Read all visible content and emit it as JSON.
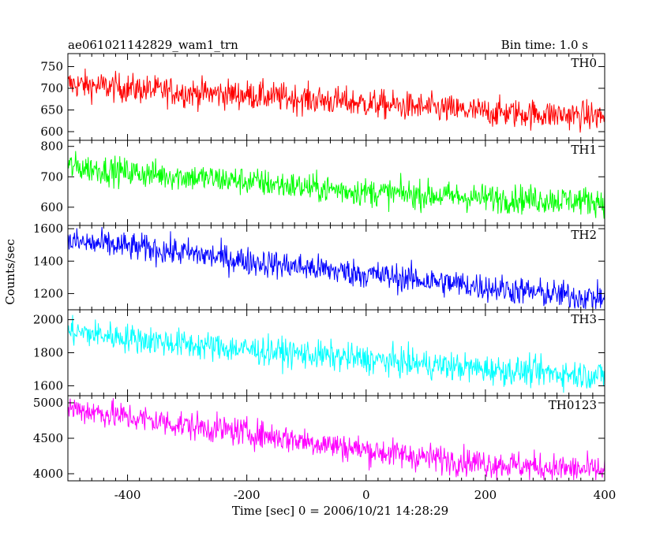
{
  "header": {
    "title": "ae061021142829_wam1_trn",
    "bin_time": "Bin time: 1.0 s"
  },
  "chart_data": {
    "type": "line",
    "title": "ae061021142829_wam1_trn",
    "subtitle": "Bin time: 1.0 s",
    "xlabel": "Time [sec] 0 = 2006/10/21 14:28:29",
    "ylabel": "Counts/sec",
    "xlim": [
      -500,
      400
    ],
    "x_ticks": [
      -400,
      -200,
      0,
      200,
      400
    ],
    "panels": [
      {
        "name": "TH0",
        "color": "#ff0000",
        "ylim": [
          580,
          780
        ],
        "y_ticks": [
          600,
          650,
          700,
          750
        ],
        "x": [
          -500,
          -400,
          -300,
          -200,
          -100,
          0,
          100,
          200,
          300,
          400
        ],
        "values": [
          710,
          700,
          690,
          685,
          675,
          665,
          655,
          645,
          640,
          635
        ]
      },
      {
        "name": "TH1",
        "color": "#00ff00",
        "ylim": [
          540,
          820
        ],
        "y_ticks": [
          600,
          700,
          800
        ],
        "x": [
          -500,
          -400,
          -300,
          -200,
          -100,
          0,
          100,
          200,
          300,
          400
        ],
        "values": [
          735,
          715,
          700,
          685,
          665,
          650,
          640,
          630,
          625,
          620
        ]
      },
      {
        "name": "TH2",
        "color": "#0000ff",
        "ylim": [
          1100,
          1620
        ],
        "y_ticks": [
          1200,
          1400,
          1600
        ],
        "x": [
          -500,
          -400,
          -300,
          -200,
          -100,
          0,
          100,
          200,
          300,
          400
        ],
        "values": [
          1520,
          1490,
          1450,
          1400,
          1360,
          1320,
          1280,
          1240,
          1200,
          1170
        ]
      },
      {
        "name": "TH3",
        "color": "#00ffff",
        "ylim": [
          1540,
          2060
        ],
        "y_ticks": [
          1600,
          1800,
          2000
        ],
        "x": [
          -500,
          -400,
          -300,
          -200,
          -100,
          0,
          100,
          200,
          300,
          400
        ],
        "values": [
          1930,
          1890,
          1850,
          1820,
          1790,
          1760,
          1730,
          1700,
          1680,
          1660
        ]
      },
      {
        "name": "TH0123",
        "color": "#ff00ff",
        "ylim": [
          3900,
          5100
        ],
        "y_ticks": [
          4000,
          4500,
          5000
        ],
        "x": [
          -500,
          -400,
          -300,
          -200,
          -100,
          0,
          100,
          200,
          300,
          400
        ],
        "values": [
          4930,
          4800,
          4680,
          4580,
          4460,
          4330,
          4230,
          4150,
          4090,
          4040
        ]
      }
    ]
  }
}
